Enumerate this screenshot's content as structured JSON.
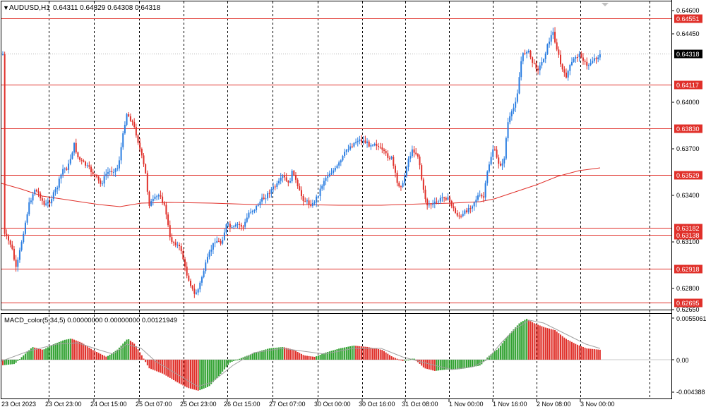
{
  "header": {
    "symbol_tf": "AUDUSD,H1",
    "ohlc": "0.64311 0.64329 0.64308 0.64318"
  },
  "price_axis": {
    "ticks": [
      "0.64600",
      "0.64450",
      "0.64000",
      "0.63700",
      "0.63400",
      "0.63100",
      "0.62800",
      "0.62650"
    ],
    "current_price": "0.64318"
  },
  "levels": [
    {
      "label": "0.64551",
      "price": 0.64551
    },
    {
      "label": "0.64117",
      "price": 0.64117
    },
    {
      "label": "0.63830",
      "price": 0.6383
    },
    {
      "label": "0.63529",
      "price": 0.63529
    },
    {
      "label": "0.63182",
      "price": 0.63182
    },
    {
      "label": "0.63138",
      "price": 0.63138
    },
    {
      "label": "0.62918",
      "price": 0.62918
    },
    {
      "label": "0.62695",
      "price": 0.62695
    }
  ],
  "time_axis": {
    "labels": [
      "23 Oct 2023",
      "23 Oct 23:00",
      "24 Oct 15:00",
      "25 Oct 07:00",
      "25 Oct 23:00",
      "26 Oct 15:00",
      "27 Oct 07:00",
      "30 Oct 00:00",
      "30 Oct 16:00",
      "31 Oct 08:00",
      "1 Nov 00:00",
      "1 Nov 16:00",
      "2 Nov 08:00",
      "3 Nov 00:00"
    ]
  },
  "macd": {
    "title": "MACD_color(5,34,5) 0.00000000 0.00000000 0.00121949",
    "ticks": [
      "0.0055061",
      "0.00",
      "-0.004388"
    ]
  },
  "colors": {
    "bull": "#2a7de1",
    "bear": "#e0302a",
    "level": "#e0302a",
    "ma": "#e0302a",
    "macd_pos": "#2ea02e",
    "macd_neg": "#e0302a",
    "signal": "#a0a0a0",
    "grid": "#000000"
  }
}
